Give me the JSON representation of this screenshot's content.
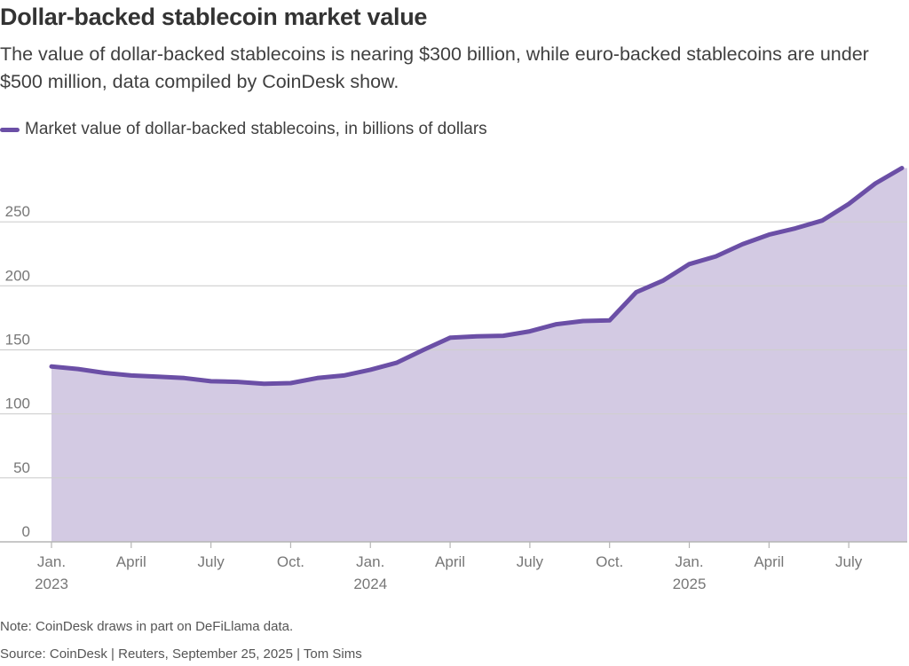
{
  "header": {
    "title": "Dollar-backed stablecoin market value",
    "subtitle": "The value of dollar-backed stablecoins is nearing $300 billion, while euro-backed stablecoins are under $500 million, data compiled by CoinDesk show."
  },
  "legend": {
    "label": "Market value of dollar-backed stablecoins, in billions of dollars",
    "color": "#6b4fa6"
  },
  "footer": {
    "note": "Note: CoinDesk draws in part on DeFiLlama data.",
    "source": "Source: CoinDesk | Reuters, September 25, 2025 | Tom Sims"
  },
  "colors": {
    "line": "#6b4fa6",
    "area": "#d3cae3",
    "grid": "#cfcfcf",
    "axis": "#b5b5b5",
    "tick_text": "#777777"
  },
  "chart_data": {
    "type": "area",
    "title": "Dollar-backed stablecoin market value",
    "xlabel": "",
    "ylabel": "Market value of dollar-backed stablecoins, in billions of dollars",
    "ylim": [
      0,
      300
    ],
    "yticks": [
      0,
      50,
      100,
      150,
      200,
      250
    ],
    "grid": true,
    "x_range_months": [
      0,
      32.2
    ],
    "x_ticks": [
      {
        "month": 0,
        "label": "Jan.",
        "year": "2023"
      },
      {
        "month": 3,
        "label": "April",
        "year": ""
      },
      {
        "month": 6,
        "label": "July",
        "year": ""
      },
      {
        "month": 9,
        "label": "Oct.",
        "year": ""
      },
      {
        "month": 12,
        "label": "Jan.",
        "year": "2024"
      },
      {
        "month": 15,
        "label": "April",
        "year": ""
      },
      {
        "month": 18,
        "label": "July",
        "year": ""
      },
      {
        "month": 21,
        "label": "Oct.",
        "year": ""
      },
      {
        "month": 24,
        "label": "Jan.",
        "year": "2025"
      },
      {
        "month": 27,
        "label": "April",
        "year": ""
      },
      {
        "month": 30,
        "label": "July",
        "year": ""
      }
    ],
    "series": [
      {
        "name": "Market value of dollar-backed stablecoins, in billions of dollars",
        "x": [
          0,
          1,
          2,
          3,
          4,
          5,
          6,
          7,
          8,
          9,
          10,
          11,
          12,
          13,
          14,
          15,
          16,
          17,
          18,
          19,
          20,
          21,
          22,
          23,
          24,
          25,
          26,
          27,
          28,
          29,
          30,
          31,
          32
        ],
        "values": [
          137,
          135,
          132,
          130,
          129,
          128,
          125.5,
          125,
          123.5,
          124,
          128,
          130,
          134.5,
          140,
          150,
          159.5,
          160.5,
          161,
          164.5,
          170,
          172.5,
          173,
          195,
          204,
          217,
          223,
          232.5,
          240,
          245,
          251,
          264,
          280,
          292
        ]
      }
    ]
  }
}
